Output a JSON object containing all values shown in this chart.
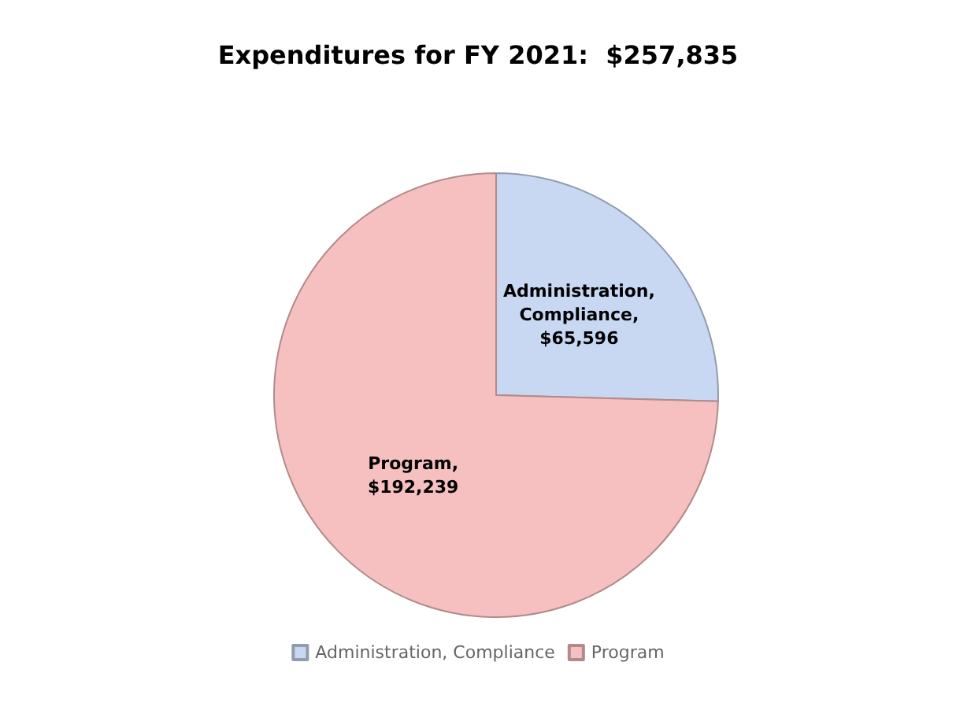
{
  "chart_data": {
    "type": "pie",
    "title": "Expenditures for FY 2021:  $257,835",
    "categories": [
      "Administration, Compliance",
      "Program"
    ],
    "values": [
      65596,
      192239
    ],
    "value_labels": [
      "Administration, Compliance, $65,596",
      "Program, $192,239"
    ],
    "colors": [
      "#c9d8f2",
      "#f7c0c0"
    ],
    "legend": "bottom"
  }
}
